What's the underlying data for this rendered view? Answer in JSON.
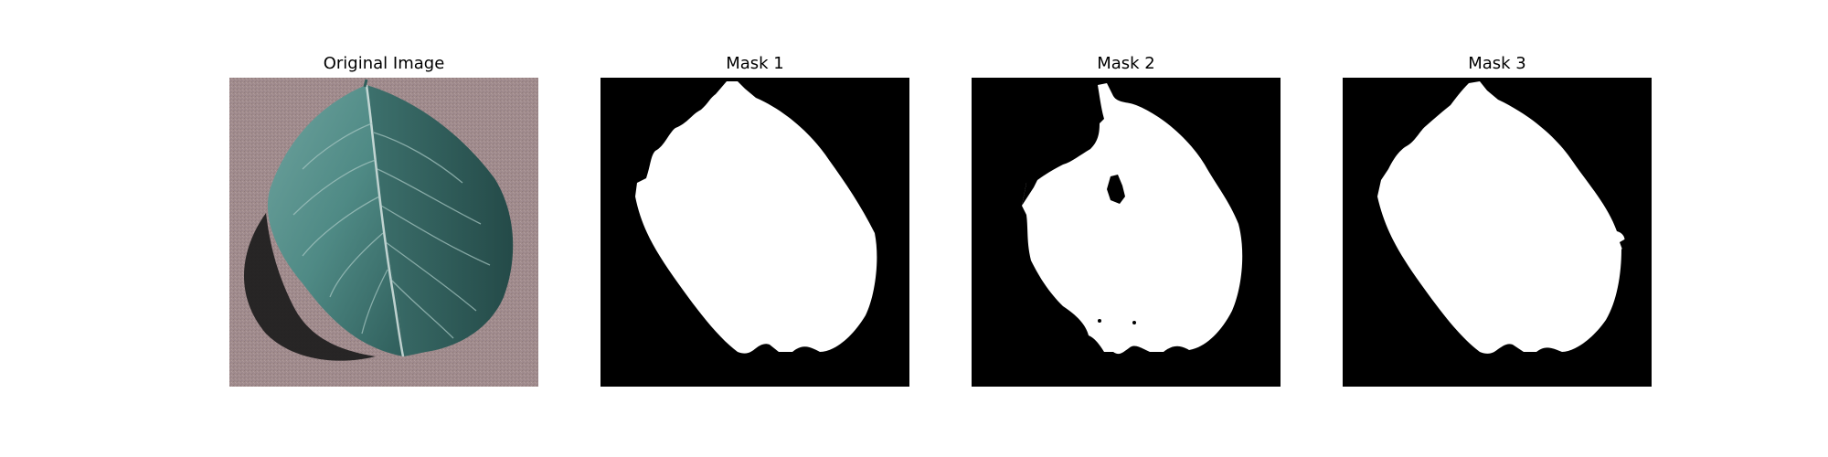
{
  "figure": {
    "panels": [
      {
        "title": "Original Image",
        "content": "photo of a green leaf on a pinkish-grey surface"
      },
      {
        "title": "Mask 1",
        "content": "binary mask: white leaf silhouette on black"
      },
      {
        "title": "Mask 2",
        "content": "binary mask: white leaf silhouette with holes on black"
      },
      {
        "title": "Mask 3",
        "content": "binary mask: white leaf silhouette on black"
      }
    ]
  },
  "colors": {
    "background": "#ffffff",
    "surface": "#a08b8c",
    "leaf": "#4f8a85",
    "leaf_dark": "#2f5e5b",
    "shadow": "#1c1c1c",
    "mask_bg": "#000000",
    "mask_fg": "#ffffff"
  }
}
